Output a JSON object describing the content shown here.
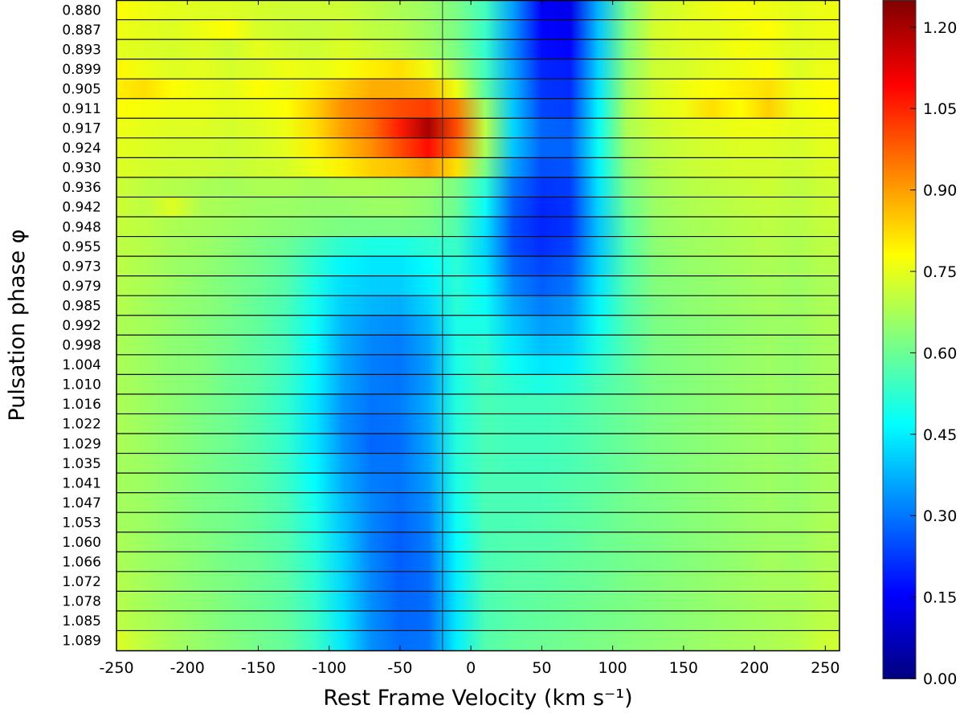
{
  "chart_data": {
    "type": "heatmap",
    "title": "",
    "xlabel": "Rest Frame Velocity (km s⁻¹)",
    "ylabel": "Pulsation phase φ",
    "xlim": [
      -250,
      260
    ],
    "x_ticks": [
      "-250",
      "-200",
      "-150",
      "-100",
      "-50",
      "0",
      "50",
      "100",
      "150",
      "200",
      "250"
    ],
    "x_tick_values": [
      -250,
      -200,
      -150,
      -100,
      -50,
      0,
      50,
      100,
      150,
      200,
      250
    ],
    "reference_line_velocity": -20,
    "colormap": "jet",
    "color_range": [
      0,
      1.25
    ],
    "colorbar_ticks": [
      "0.00",
      "0.15",
      "0.30",
      "0.45",
      "0.60",
      "0.75",
      "0.90",
      "1.05",
      "1.20"
    ],
    "colorbar_tick_values": [
      0,
      0.15,
      0.3,
      0.45,
      0.6,
      0.75,
      0.9,
      1.05,
      1.2
    ],
    "velocities": [
      -250,
      -230,
      -210,
      -190,
      -170,
      -150,
      -130,
      -110,
      -90,
      -70,
      -50,
      -30,
      -10,
      10,
      30,
      50,
      70,
      90,
      110,
      130,
      150,
      170,
      190,
      210,
      230,
      250
    ],
    "phases": [
      "0.880",
      "0.887",
      "0.893",
      "0.899",
      "0.905",
      "0.911",
      "0.917",
      "0.924",
      "0.930",
      "0.936",
      "0.942",
      "0.948",
      "0.955",
      "0.973",
      "0.979",
      "0.985",
      "0.992",
      "0.998",
      "1.004",
      "1.010",
      "1.016",
      "1.022",
      "1.029",
      "1.035",
      "1.041",
      "1.047",
      "1.053",
      "1.060",
      "1.066",
      "1.072",
      "1.078",
      "1.085",
      "1.089"
    ],
    "values": [
      [
        0.78,
        0.76,
        0.75,
        0.74,
        0.74,
        0.73,
        0.72,
        0.72,
        0.72,
        0.7,
        0.68,
        0.66,
        0.62,
        0.55,
        0.35,
        0.15,
        0.13,
        0.38,
        0.62,
        0.72,
        0.74,
        0.76,
        0.77,
        0.76,
        0.75,
        0.76
      ],
      [
        0.76,
        0.75,
        0.74,
        0.76,
        0.78,
        0.73,
        0.72,
        0.71,
        0.72,
        0.7,
        0.69,
        0.66,
        0.62,
        0.54,
        0.34,
        0.16,
        0.14,
        0.4,
        0.63,
        0.73,
        0.75,
        0.75,
        0.76,
        0.78,
        0.75,
        0.76
      ],
      [
        0.75,
        0.74,
        0.73,
        0.74,
        0.72,
        0.75,
        0.73,
        0.72,
        0.74,
        0.72,
        0.7,
        0.67,
        0.62,
        0.53,
        0.33,
        0.17,
        0.16,
        0.4,
        0.63,
        0.72,
        0.74,
        0.75,
        0.77,
        0.76,
        0.74,
        0.75
      ],
      [
        0.79,
        0.76,
        0.74,
        0.75,
        0.73,
        0.74,
        0.76,
        0.75,
        0.77,
        0.8,
        0.82,
        0.76,
        0.66,
        0.55,
        0.36,
        0.2,
        0.19,
        0.42,
        0.64,
        0.72,
        0.73,
        0.75,
        0.76,
        0.78,
        0.74,
        0.76
      ],
      [
        0.8,
        0.82,
        0.78,
        0.76,
        0.75,
        0.78,
        0.76,
        0.8,
        0.84,
        0.88,
        0.88,
        0.86,
        0.76,
        0.58,
        0.38,
        0.22,
        0.21,
        0.44,
        0.66,
        0.73,
        0.76,
        0.78,
        0.8,
        0.82,
        0.76,
        0.78
      ],
      [
        0.78,
        0.77,
        0.76,
        0.76,
        0.75,
        0.76,
        0.78,
        0.84,
        0.92,
        0.96,
        1.0,
        1.02,
        0.94,
        0.66,
        0.4,
        0.24,
        0.23,
        0.46,
        0.68,
        0.74,
        0.76,
        0.82,
        0.78,
        0.84,
        0.76,
        0.78
      ],
      [
        0.76,
        0.75,
        0.74,
        0.74,
        0.73,
        0.74,
        0.76,
        0.82,
        0.9,
        0.96,
        1.06,
        1.2,
        1.0,
        0.7,
        0.42,
        0.28,
        0.27,
        0.48,
        0.68,
        0.72,
        0.74,
        0.75,
        0.76,
        0.76,
        0.75,
        0.76
      ],
      [
        0.75,
        0.74,
        0.73,
        0.73,
        0.72,
        0.73,
        0.75,
        0.8,
        0.86,
        0.92,
        1.0,
        1.08,
        0.95,
        0.68,
        0.4,
        0.28,
        0.28,
        0.48,
        0.66,
        0.7,
        0.72,
        0.73,
        0.74,
        0.74,
        0.73,
        0.75
      ],
      [
        0.74,
        0.73,
        0.72,
        0.72,
        0.71,
        0.72,
        0.73,
        0.76,
        0.8,
        0.84,
        0.86,
        0.9,
        0.82,
        0.62,
        0.36,
        0.25,
        0.26,
        0.46,
        0.64,
        0.69,
        0.71,
        0.72,
        0.73,
        0.73,
        0.72,
        0.74
      ],
      [
        0.72,
        0.7,
        0.69,
        0.68,
        0.67,
        0.68,
        0.68,
        0.67,
        0.68,
        0.68,
        0.67,
        0.66,
        0.62,
        0.52,
        0.3,
        0.22,
        0.23,
        0.44,
        0.62,
        0.67,
        0.69,
        0.7,
        0.71,
        0.72,
        0.7,
        0.72
      ],
      [
        0.72,
        0.7,
        0.74,
        0.68,
        0.67,
        0.66,
        0.66,
        0.65,
        0.65,
        0.66,
        0.66,
        0.64,
        0.6,
        0.48,
        0.27,
        0.2,
        0.22,
        0.42,
        0.6,
        0.66,
        0.68,
        0.69,
        0.7,
        0.71,
        0.7,
        0.72
      ],
      [
        0.71,
        0.7,
        0.68,
        0.67,
        0.66,
        0.65,
        0.64,
        0.63,
        0.62,
        0.62,
        0.62,
        0.61,
        0.57,
        0.44,
        0.25,
        0.2,
        0.22,
        0.4,
        0.58,
        0.65,
        0.67,
        0.68,
        0.69,
        0.7,
        0.69,
        0.71
      ],
      [
        0.7,
        0.69,
        0.67,
        0.66,
        0.64,
        0.62,
        0.6,
        0.56,
        0.52,
        0.5,
        0.5,
        0.52,
        0.54,
        0.42,
        0.25,
        0.21,
        0.24,
        0.4,
        0.57,
        0.64,
        0.66,
        0.67,
        0.68,
        0.69,
        0.68,
        0.7
      ],
      [
        0.7,
        0.68,
        0.66,
        0.65,
        0.63,
        0.61,
        0.58,
        0.52,
        0.46,
        0.44,
        0.44,
        0.47,
        0.52,
        0.44,
        0.28,
        0.24,
        0.27,
        0.42,
        0.57,
        0.63,
        0.65,
        0.66,
        0.67,
        0.68,
        0.67,
        0.69
      ],
      [
        0.69,
        0.68,
        0.66,
        0.64,
        0.62,
        0.6,
        0.57,
        0.5,
        0.43,
        0.41,
        0.41,
        0.45,
        0.52,
        0.46,
        0.32,
        0.27,
        0.3,
        0.44,
        0.57,
        0.63,
        0.64,
        0.65,
        0.66,
        0.67,
        0.66,
        0.68
      ],
      [
        0.69,
        0.67,
        0.65,
        0.64,
        0.62,
        0.59,
        0.56,
        0.49,
        0.41,
        0.38,
        0.37,
        0.42,
        0.52,
        0.48,
        0.36,
        0.31,
        0.34,
        0.46,
        0.57,
        0.62,
        0.64,
        0.65,
        0.66,
        0.67,
        0.66,
        0.68
      ],
      [
        0.68,
        0.67,
        0.65,
        0.63,
        0.61,
        0.59,
        0.55,
        0.48,
        0.38,
        0.34,
        0.33,
        0.38,
        0.5,
        0.5,
        0.4,
        0.35,
        0.37,
        0.48,
        0.57,
        0.62,
        0.63,
        0.64,
        0.65,
        0.66,
        0.66,
        0.68
      ],
      [
        0.68,
        0.66,
        0.64,
        0.63,
        0.61,
        0.58,
        0.55,
        0.47,
        0.37,
        0.32,
        0.31,
        0.36,
        0.5,
        0.52,
        0.44,
        0.39,
        0.41,
        0.5,
        0.57,
        0.62,
        0.63,
        0.64,
        0.65,
        0.66,
        0.65,
        0.67
      ],
      [
        0.68,
        0.66,
        0.64,
        0.63,
        0.6,
        0.58,
        0.54,
        0.46,
        0.36,
        0.31,
        0.3,
        0.35,
        0.5,
        0.54,
        0.48,
        0.44,
        0.45,
        0.52,
        0.58,
        0.62,
        0.63,
        0.64,
        0.65,
        0.66,
        0.65,
        0.67
      ],
      [
        0.68,
        0.66,
        0.64,
        0.63,
        0.6,
        0.58,
        0.54,
        0.46,
        0.36,
        0.31,
        0.3,
        0.35,
        0.5,
        0.55,
        0.52,
        0.5,
        0.52,
        0.56,
        0.59,
        0.62,
        0.63,
        0.64,
        0.65,
        0.66,
        0.65,
        0.67
      ],
      [
        0.68,
        0.66,
        0.64,
        0.62,
        0.6,
        0.57,
        0.53,
        0.44,
        0.34,
        0.3,
        0.31,
        0.37,
        0.51,
        0.56,
        0.55,
        0.55,
        0.56,
        0.58,
        0.6,
        0.62,
        0.63,
        0.64,
        0.65,
        0.66,
        0.65,
        0.67
      ],
      [
        0.68,
        0.66,
        0.64,
        0.62,
        0.6,
        0.57,
        0.53,
        0.44,
        0.33,
        0.29,
        0.3,
        0.36,
        0.51,
        0.56,
        0.55,
        0.55,
        0.56,
        0.58,
        0.6,
        0.62,
        0.63,
        0.64,
        0.65,
        0.66,
        0.65,
        0.67
      ],
      [
        0.68,
        0.66,
        0.64,
        0.62,
        0.6,
        0.57,
        0.53,
        0.44,
        0.34,
        0.28,
        0.29,
        0.36,
        0.51,
        0.56,
        0.55,
        0.55,
        0.56,
        0.58,
        0.6,
        0.62,
        0.63,
        0.64,
        0.65,
        0.66,
        0.65,
        0.67
      ],
      [
        0.67,
        0.66,
        0.64,
        0.62,
        0.6,
        0.58,
        0.54,
        0.46,
        0.36,
        0.3,
        0.3,
        0.36,
        0.51,
        0.56,
        0.55,
        0.55,
        0.56,
        0.58,
        0.6,
        0.62,
        0.63,
        0.64,
        0.65,
        0.66,
        0.65,
        0.67
      ],
      [
        0.67,
        0.66,
        0.64,
        0.62,
        0.6,
        0.58,
        0.54,
        0.47,
        0.37,
        0.31,
        0.3,
        0.35,
        0.5,
        0.56,
        0.56,
        0.56,
        0.57,
        0.58,
        0.6,
        0.62,
        0.63,
        0.64,
        0.65,
        0.66,
        0.65,
        0.67
      ],
      [
        0.67,
        0.66,
        0.64,
        0.62,
        0.61,
        0.59,
        0.56,
        0.49,
        0.39,
        0.32,
        0.29,
        0.33,
        0.49,
        0.56,
        0.56,
        0.56,
        0.57,
        0.59,
        0.61,
        0.62,
        0.63,
        0.64,
        0.65,
        0.66,
        0.65,
        0.67
      ],
      [
        0.67,
        0.66,
        0.64,
        0.62,
        0.61,
        0.59,
        0.56,
        0.5,
        0.4,
        0.32,
        0.28,
        0.32,
        0.48,
        0.56,
        0.56,
        0.57,
        0.58,
        0.59,
        0.61,
        0.62,
        0.63,
        0.64,
        0.65,
        0.66,
        0.66,
        0.68
      ],
      [
        0.68,
        0.66,
        0.64,
        0.63,
        0.61,
        0.59,
        0.57,
        0.51,
        0.41,
        0.31,
        0.27,
        0.31,
        0.47,
        0.56,
        0.57,
        0.57,
        0.58,
        0.6,
        0.61,
        0.62,
        0.63,
        0.64,
        0.65,
        0.66,
        0.66,
        0.68
      ],
      [
        0.68,
        0.66,
        0.65,
        0.63,
        0.61,
        0.6,
        0.57,
        0.52,
        0.42,
        0.32,
        0.27,
        0.3,
        0.46,
        0.56,
        0.57,
        0.58,
        0.59,
        0.6,
        0.61,
        0.62,
        0.63,
        0.64,
        0.65,
        0.67,
        0.66,
        0.68
      ],
      [
        0.69,
        0.67,
        0.65,
        0.63,
        0.62,
        0.6,
        0.58,
        0.52,
        0.42,
        0.32,
        0.27,
        0.29,
        0.45,
        0.56,
        0.58,
        0.58,
        0.59,
        0.6,
        0.62,
        0.63,
        0.64,
        0.65,
        0.66,
        0.67,
        0.67,
        0.69
      ],
      [
        0.69,
        0.67,
        0.65,
        0.64,
        0.62,
        0.6,
        0.58,
        0.53,
        0.43,
        0.33,
        0.28,
        0.29,
        0.44,
        0.56,
        0.58,
        0.59,
        0.6,
        0.61,
        0.62,
        0.63,
        0.64,
        0.65,
        0.66,
        0.67,
        0.67,
        0.69
      ],
      [
        0.7,
        0.68,
        0.66,
        0.64,
        0.62,
        0.61,
        0.59,
        0.54,
        0.44,
        0.33,
        0.28,
        0.29,
        0.44,
        0.56,
        0.58,
        0.59,
        0.6,
        0.61,
        0.62,
        0.63,
        0.64,
        0.65,
        0.66,
        0.67,
        0.68,
        0.7
      ],
      [
        0.74,
        0.7,
        0.67,
        0.65,
        0.63,
        0.61,
        0.59,
        0.54,
        0.44,
        0.33,
        0.29,
        0.3,
        0.45,
        0.57,
        0.59,
        0.6,
        0.61,
        0.62,
        0.63,
        0.64,
        0.65,
        0.66,
        0.67,
        0.68,
        0.69,
        0.72
      ]
    ]
  }
}
